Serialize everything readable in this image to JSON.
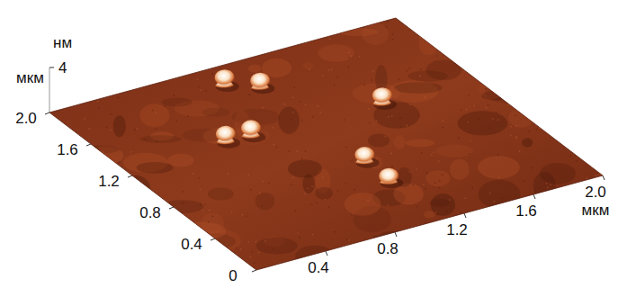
{
  "chart_data": {
    "type": "surface3d",
    "x_label": "мкм",
    "y_label": "мкм",
    "z_label": "нм",
    "x": [
      0.88,
      1.02,
      0.57,
      0.71,
      1.45,
      1.05,
      1.04
    ],
    "y": [
      1.78,
      1.67,
      1.25,
      1.24,
      1.21,
      0.71,
      0.46
    ],
    "values": [
      1.0,
      0.9,
      1.0,
      1.0,
      1.0,
      0.9,
      0.8
    ],
    "color": "#8e3a1c",
    "xlim": [
      0,
      2
    ],
    "ylim": [
      0,
      2
    ],
    "zlim": [
      0,
      4
    ],
    "xticks": [
      0.4,
      0.8,
      1.2,
      1.6,
      {
        "value": 2,
        "label": "2.0"
      }
    ],
    "yticks": [
      0,
      0.4,
      0.8,
      1.2,
      1.6,
      {
        "value": 2,
        "label": "2.0"
      }
    ],
    "zticks": [
      4
    ],
    "grid": false
  }
}
